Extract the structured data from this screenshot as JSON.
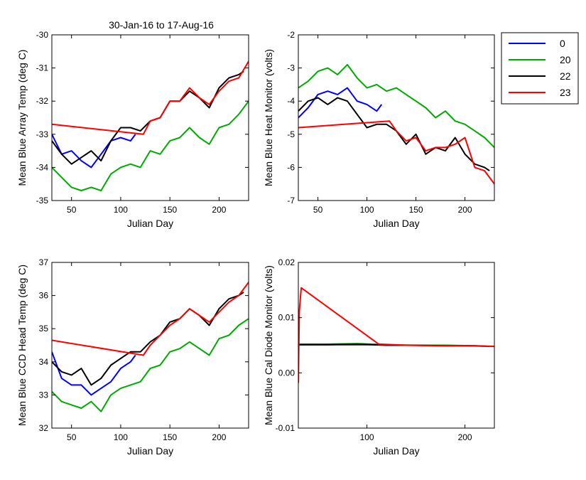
{
  "figure_title": "30-Jan-16 to 17-Aug-16",
  "legend": {
    "placement": "outside top-right",
    "entries": [
      {
        "label": "0",
        "color": "#0000ff"
      },
      {
        "label": "20",
        "color": "#00aa00"
      },
      {
        "label": "22",
        "color": "#000000"
      },
      {
        "label": "23",
        "color": "#ff0000"
      }
    ]
  },
  "chart_data": [
    {
      "type": "line",
      "title": "",
      "xlabel": "Julian Day",
      "ylabel": "Mean Blue Array Temp (deg C)",
      "xlim": [
        30,
        230
      ],
      "ylim": [
        -35,
        -30
      ],
      "xticks": [
        50,
        100,
        150,
        200
      ],
      "yticks": [
        -35,
        -34,
        -33,
        -32,
        -31,
        -30
      ],
      "ytick_labels": [
        "-35",
        "-34",
        "-33",
        "-32",
        "-31",
        "-30"
      ],
      "series": [
        {
          "name": "0",
          "color": "#0000ff",
          "x": [
            30,
            40,
            50,
            60,
            70,
            80,
            90,
            100,
            110,
            115
          ],
          "y": [
            -33.0,
            -33.6,
            -33.5,
            -33.8,
            -34.0,
            -33.6,
            -33.2,
            -33.1,
            -33.2,
            -33.0
          ]
        },
        {
          "name": "20",
          "color": "#00aa00",
          "x": [
            30,
            40,
            50,
            60,
            70,
            80,
            90,
            100,
            110,
            120,
            130,
            140,
            150,
            160,
            170,
            180,
            190,
            200,
            210,
            220,
            230
          ],
          "y": [
            -34.0,
            -34.3,
            -34.6,
            -34.7,
            -34.6,
            -34.7,
            -34.2,
            -34.0,
            -33.9,
            -34.0,
            -33.5,
            -33.6,
            -33.2,
            -33.1,
            -32.8,
            -33.1,
            -33.3,
            -32.8,
            -32.7,
            -32.4,
            -32.0
          ]
        },
        {
          "name": "22",
          "color": "#000000",
          "x": [
            30,
            40,
            50,
            60,
            70,
            80,
            90,
            100,
            110,
            120,
            130,
            140,
            150,
            160,
            170,
            180,
            190,
            200,
            210,
            220,
            225
          ],
          "y": [
            -33.2,
            -33.6,
            -33.9,
            -33.7,
            -33.5,
            -33.8,
            -33.2,
            -32.8,
            -32.8,
            -32.9,
            -32.6,
            -32.5,
            -32.0,
            -32.0,
            -31.7,
            -31.9,
            -32.2,
            -31.6,
            -31.3,
            -31.2,
            -31.1
          ]
        },
        {
          "name": "23",
          "color": "#ff0000",
          "x": [
            30,
            123,
            130,
            140,
            150,
            160,
            170,
            180,
            190,
            200,
            210,
            220,
            230
          ],
          "y": [
            -32.7,
            -33.0,
            -32.6,
            -32.5,
            -32.0,
            -32.0,
            -31.6,
            -31.9,
            -32.1,
            -31.7,
            -31.4,
            -31.3,
            -30.8
          ]
        }
      ]
    },
    {
      "type": "line",
      "title": "",
      "xlabel": "Julian Day",
      "ylabel": "Mean Blue Heat Monitor (volts)",
      "xlim": [
        30,
        230
      ],
      "ylim": [
        -7,
        -2
      ],
      "xticks": [
        50,
        100,
        150,
        200
      ],
      "yticks": [
        -7,
        -6,
        -5,
        -4,
        -3,
        -2
      ],
      "ytick_labels": [
        "-7",
        "-6",
        "-5",
        "-4",
        "-3",
        "-2"
      ],
      "series": [
        {
          "name": "0",
          "color": "#0000ff",
          "x": [
            30,
            40,
            50,
            60,
            70,
            80,
            90,
            100,
            110,
            115
          ],
          "y": [
            -4.5,
            -4.2,
            -3.8,
            -3.7,
            -3.8,
            -3.6,
            -4.0,
            -4.1,
            -4.3,
            -4.1
          ]
        },
        {
          "name": "20",
          "color": "#00aa00",
          "x": [
            30,
            40,
            50,
            60,
            70,
            80,
            90,
            100,
            110,
            120,
            130,
            140,
            150,
            160,
            170,
            180,
            190,
            200,
            210,
            220,
            230
          ],
          "y": [
            -3.6,
            -3.4,
            -3.1,
            -3.0,
            -3.2,
            -2.9,
            -3.3,
            -3.6,
            -3.5,
            -3.7,
            -3.6,
            -3.8,
            -4.0,
            -4.2,
            -4.5,
            -4.3,
            -4.6,
            -4.7,
            -4.9,
            -5.1,
            -5.4
          ]
        },
        {
          "name": "22",
          "color": "#000000",
          "x": [
            30,
            40,
            50,
            60,
            70,
            80,
            90,
            100,
            110,
            120,
            130,
            140,
            150,
            160,
            170,
            180,
            190,
            200,
            210,
            220,
            225
          ],
          "y": [
            -4.3,
            -4.0,
            -3.9,
            -4.1,
            -3.9,
            -4.0,
            -4.4,
            -4.8,
            -4.7,
            -4.7,
            -4.9,
            -5.3,
            -5.0,
            -5.6,
            -5.4,
            -5.5,
            -5.1,
            -5.6,
            -5.9,
            -6.0,
            -6.1
          ]
        },
        {
          "name": "23",
          "color": "#ff0000",
          "x": [
            30,
            123,
            130,
            140,
            150,
            160,
            170,
            180,
            190,
            200,
            210,
            220,
            230
          ],
          "y": [
            -4.8,
            -4.6,
            -4.9,
            -5.2,
            -5.1,
            -5.5,
            -5.4,
            -5.4,
            -5.3,
            -5.1,
            -6.0,
            -6.1,
            -6.5
          ]
        }
      ]
    },
    {
      "type": "line",
      "title": "",
      "xlabel": "Julian Day",
      "ylabel": "Mean Blue CCD Head Temp (deg C)",
      "xlim": [
        30,
        230
      ],
      "ylim": [
        32,
        37
      ],
      "xticks": [
        50,
        100,
        150,
        200
      ],
      "yticks": [
        32,
        33,
        34,
        35,
        36,
        37
      ],
      "ytick_labels": [
        "32",
        "33",
        "34",
        "35",
        "36",
        "37"
      ],
      "series": [
        {
          "name": "0",
          "color": "#0000ff",
          "x": [
            30,
            40,
            50,
            60,
            70,
            80,
            90,
            100,
            110,
            115
          ],
          "y": [
            34.3,
            33.5,
            33.3,
            33.3,
            33.0,
            33.2,
            33.4,
            33.8,
            34.0,
            34.2
          ]
        },
        {
          "name": "20",
          "color": "#00aa00",
          "x": [
            30,
            40,
            50,
            60,
            70,
            80,
            90,
            100,
            110,
            120,
            130,
            140,
            150,
            160,
            170,
            180,
            190,
            200,
            210,
            220,
            230
          ],
          "y": [
            33.1,
            32.8,
            32.7,
            32.6,
            32.8,
            32.5,
            33.0,
            33.2,
            33.3,
            33.4,
            33.8,
            33.9,
            34.3,
            34.4,
            34.6,
            34.4,
            34.2,
            34.7,
            34.8,
            35.1,
            35.3
          ]
        },
        {
          "name": "22",
          "color": "#000000",
          "x": [
            30,
            40,
            50,
            60,
            70,
            80,
            90,
            100,
            110,
            120,
            130,
            140,
            150,
            160,
            170,
            180,
            190,
            200,
            210,
            220,
            225
          ],
          "y": [
            34.0,
            33.7,
            33.6,
            33.8,
            33.3,
            33.5,
            33.9,
            34.1,
            34.3,
            34.3,
            34.6,
            34.8,
            35.2,
            35.3,
            35.6,
            35.4,
            35.1,
            35.6,
            35.9,
            36.0,
            36.1
          ]
        },
        {
          "name": "23",
          "color": "#ff0000",
          "x": [
            30,
            123,
            130,
            140,
            150,
            160,
            170,
            180,
            190,
            200,
            210,
            220,
            230
          ],
          "y": [
            34.65,
            34.2,
            34.5,
            34.8,
            35.1,
            35.3,
            35.6,
            35.4,
            35.2,
            35.5,
            35.8,
            36.0,
            36.4
          ]
        }
      ]
    },
    {
      "type": "line",
      "title": "",
      "xlabel": "Julian Day",
      "ylabel": "Mean Blue Cal Diode Monitor (volts)",
      "xlim": [
        30,
        230
      ],
      "ylim": [
        -0.01,
        0.02
      ],
      "xticks": [
        100,
        200
      ],
      "yticks": [
        -0.01,
        0.0,
        0.01,
        0.02
      ],
      "ytick_labels": [
        "-0.01",
        "0.00",
        "0.01",
        "0.02"
      ],
      "series": [
        {
          "name": "0",
          "color": "#0000ff",
          "x": [
            30,
            60,
            90,
            115
          ],
          "y": [
            0.0051,
            0.0051,
            0.0051,
            0.0051
          ]
        },
        {
          "name": "20",
          "color": "#00aa00",
          "x": [
            30,
            60,
            90,
            120,
            150,
            180,
            210,
            230
          ],
          "y": [
            0.0052,
            0.0052,
            0.0053,
            0.0051,
            0.005,
            0.005,
            0.0049,
            0.0048
          ]
        },
        {
          "name": "22",
          "color": "#000000",
          "x": [
            30,
            60,
            90,
            120,
            150,
            180,
            210,
            225
          ],
          "y": [
            0.0051,
            0.0051,
            0.0052,
            0.005,
            0.005,
            0.0049,
            0.0049,
            0.0048
          ]
        },
        {
          "name": "23",
          "color": "#ff0000",
          "x": [
            30,
            31,
            33,
            112,
            140,
            170,
            200,
            230
          ],
          "y": [
            -0.0018,
            0.0112,
            0.0154,
            0.0052,
            0.005,
            0.0049,
            0.0049,
            0.0048
          ]
        }
      ]
    }
  ]
}
